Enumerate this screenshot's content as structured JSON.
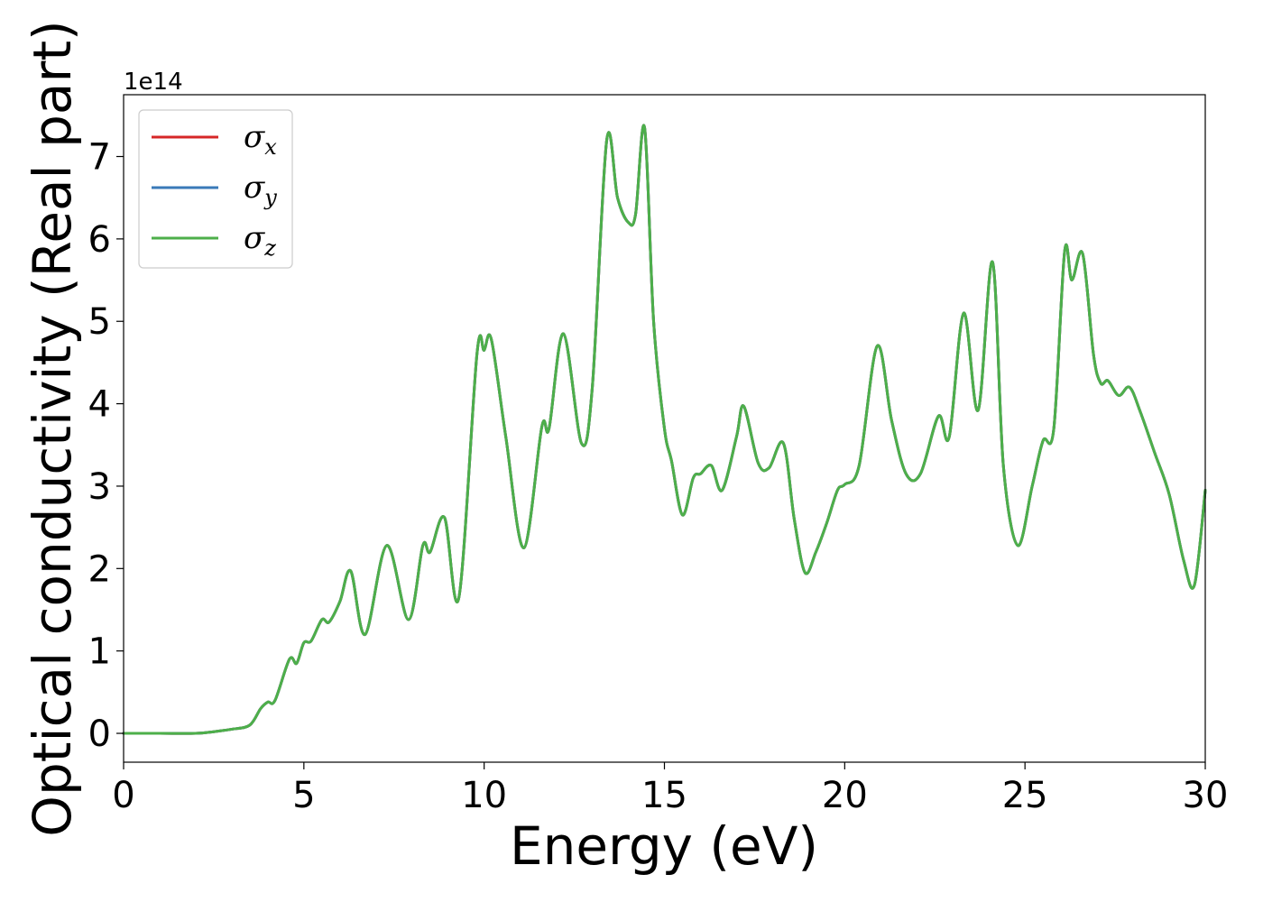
{
  "chart_data": {
    "type": "line",
    "xlabel": "Energy (eV)",
    "ylabel": "Optical conductivity (Real part)",
    "y_offset_label": "1e14",
    "xlim": [
      0,
      30
    ],
    "ylim": [
      -0.35,
      7.75
    ],
    "xticks": [
      0,
      5,
      10,
      15,
      20,
      25,
      30
    ],
    "yticks": [
      0,
      1,
      2,
      3,
      4,
      5,
      6,
      7
    ],
    "grid": false,
    "legend_position": "top-left",
    "series": [
      {
        "name": "σx",
        "symbol": "σ",
        "subscript": "x",
        "color": "#d62728",
        "x": [],
        "y": []
      },
      {
        "name": "σy",
        "symbol": "σ",
        "subscript": "y",
        "color": "#3a7ab8",
        "x": [],
        "y": []
      },
      {
        "name": "σz",
        "symbol": "σ",
        "subscript": "z",
        "color": "#4daf4a",
        "x": [
          0,
          1,
          2,
          2.5,
          3,
          3.5,
          3.8,
          4.0,
          4.2,
          4.6,
          4.8,
          5.0,
          5.2,
          5.5,
          5.7,
          6.0,
          6.3,
          6.7,
          7.3,
          7.9,
          8.3,
          8.5,
          8.9,
          9.3,
          9.8,
          10.0,
          10.2,
          10.6,
          11.1,
          11.6,
          11.8,
          12.2,
          12.7,
          13.0,
          13.4,
          13.7,
          14.0,
          14.2,
          14.45,
          14.7,
          15.0,
          15.2,
          15.5,
          15.8,
          16.0,
          16.3,
          16.6,
          17.0,
          17.2,
          17.6,
          17.9,
          18.3,
          18.6,
          18.9,
          19.2,
          19.5,
          19.8,
          20.0,
          20.4,
          20.9,
          21.3,
          21.7,
          22.1,
          22.6,
          22.9,
          23.3,
          23.7,
          24.1,
          24.4,
          24.8,
          25.2,
          25.5,
          25.8,
          26.1,
          26.3,
          26.6,
          26.9,
          27.1,
          27.3,
          27.6,
          27.9,
          28.2,
          28.6,
          29.0,
          29.4,
          29.7,
          30.0
        ],
        "y": [
          0,
          0,
          0,
          0.02,
          0.05,
          0.1,
          0.3,
          0.38,
          0.4,
          0.9,
          0.85,
          1.1,
          1.12,
          1.38,
          1.35,
          1.6,
          1.97,
          1.2,
          2.28,
          1.38,
          2.28,
          2.2,
          2.62,
          1.65,
          4.6,
          4.65,
          4.78,
          3.6,
          2.25,
          3.72,
          3.7,
          4.85,
          3.52,
          4.2,
          7.2,
          6.5,
          6.2,
          6.3,
          7.35,
          5.0,
          3.7,
          3.3,
          2.65,
          3.1,
          3.15,
          3.25,
          2.95,
          3.6,
          3.97,
          3.28,
          3.22,
          3.52,
          2.6,
          1.95,
          2.2,
          2.55,
          2.95,
          3.02,
          3.25,
          4.7,
          3.8,
          3.15,
          3.15,
          3.85,
          3.6,
          5.1,
          3.92,
          5.72,
          3.25,
          2.28,
          3.0,
          3.55,
          3.7,
          5.85,
          5.5,
          5.82,
          4.6,
          4.25,
          4.28,
          4.1,
          4.2,
          3.9,
          3.4,
          2.9,
          2.1,
          1.8,
          2.95
        ]
      }
    ]
  }
}
